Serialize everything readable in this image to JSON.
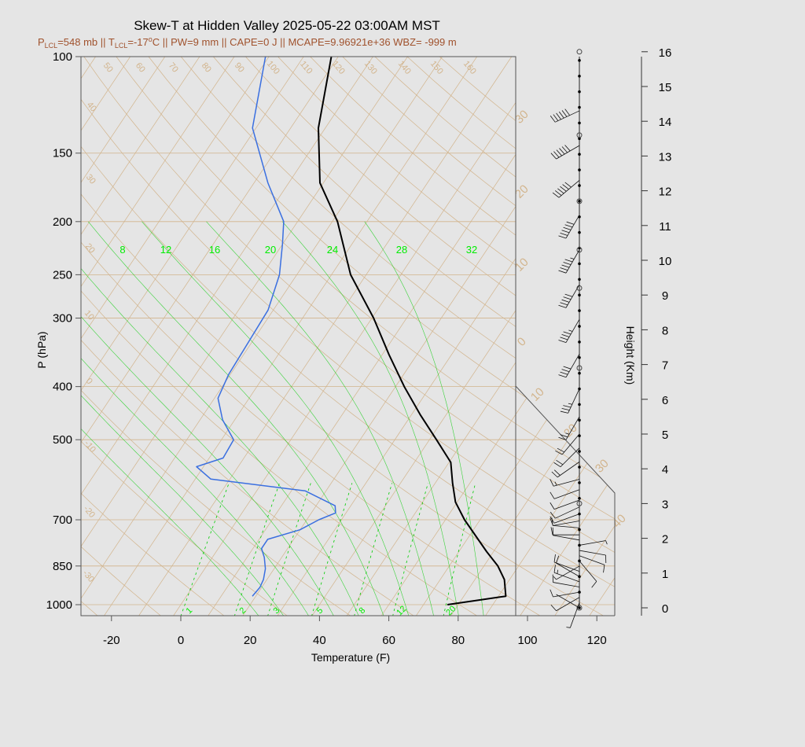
{
  "chart_data": {
    "type": "line",
    "title": "Skew-T at Hidden Valley 2025-05-22 03:00AM MST",
    "subtitle": {
      "p_lcl_sym": "P",
      "p_lcl_sub": "LCL",
      "p_lcl_val": "=548 mb || ",
      "t_lcl_sym": "T",
      "t_lcl_sub": "LCL",
      "t_lcl_val": "=-17",
      "deg": "o",
      "rest": "C || PW=9 mm || CAPE=0 J || MCAPE=9.96921e+36 WBZ= -999 m"
    },
    "xlabel": "Temperature (F)",
    "ylabel": "P (hPa)",
    "y2label": "Height (Km)",
    "xlim": [
      -28,
      125
    ],
    "ylim": [
      1050,
      100
    ],
    "xticks": [
      "-20",
      "0",
      "20",
      "40",
      "60",
      "80",
      "100",
      "120"
    ],
    "yticks": [
      "100",
      "150",
      "200",
      "250",
      "300",
      "400",
      "500",
      "700",
      "850",
      "1000"
    ],
    "heights": [
      "0",
      "1",
      "2",
      "3",
      "4",
      "5",
      "6",
      "7",
      "8",
      "9",
      "10",
      "11",
      "12",
      "13",
      "14",
      "15",
      "16"
    ],
    "isotherm_labels": [
      "50",
      "60",
      "70",
      "80",
      "90",
      "100",
      "110",
      "120",
      "130",
      "140",
      "150",
      "160"
    ],
    "isotherm_left_labels": [
      "40",
      "30",
      "20",
      "10",
      "0",
      "-10",
      "-20",
      "-30"
    ],
    "isotherm_right_labels": [
      "30",
      "20",
      "10",
      "0",
      "10",
      "20",
      "30",
      "40"
    ],
    "mixing_labels": [
      "1",
      "2",
      "3",
      "5",
      "8",
      "12",
      "20"
    ],
    "moist_labels": [
      "8",
      "12",
      "16",
      "20",
      "24",
      "28",
      "32"
    ],
    "series": [
      {
        "name": "Temperature",
        "color": "#000000",
        "points": [
          [
            1000,
            76.9
          ],
          [
            965,
            92.1
          ],
          [
            900,
            88.5
          ],
          [
            850,
            84.0
          ],
          [
            800,
            78.0
          ],
          [
            700,
            65.5
          ],
          [
            650,
            59.5
          ],
          [
            600,
            55.0
          ],
          [
            550,
            50.5
          ],
          [
            500,
            42.0
          ],
          [
            450,
            32.5
          ],
          [
            400,
            22.5
          ],
          [
            350,
            12.0
          ],
          [
            300,
            0.5
          ],
          [
            250,
            -14.5
          ],
          [
            200,
            -28.5
          ],
          [
            170,
            -41.0
          ],
          [
            135,
            -52.0
          ],
          [
            100,
            -62.0
          ]
        ]
      },
      {
        "name": "Dewpoint",
        "color": "#3a6fe0",
        "points": [
          [
            965,
            19.0
          ],
          [
            930,
            19.5
          ],
          [
            900,
            19.0
          ],
          [
            860,
            17.5
          ],
          [
            820,
            15.0
          ],
          [
            790,
            12.5
          ],
          [
            760,
            12.5
          ],
          [
            730,
            20.0
          ],
          [
            700,
            23.5
          ],
          [
            680,
            27.0
          ],
          [
            660,
            25.5
          ],
          [
            620,
            14.0
          ],
          [
            590,
            -15.5
          ],
          [
            560,
            -22.0
          ],
          [
            540,
            -16.0
          ],
          [
            500,
            -16.5
          ],
          [
            460,
            -23.5
          ],
          [
            420,
            -29.0
          ],
          [
            380,
            -30.5
          ],
          [
            330,
            -31.0
          ],
          [
            290,
            -31.5
          ],
          [
            250,
            -35.0
          ],
          [
            220,
            -40.0
          ],
          [
            200,
            -44.0
          ],
          [
            170,
            -56.0
          ],
          [
            135,
            -71.0
          ],
          [
            100,
            -81.0
          ]
        ]
      }
    ],
    "winds": [
      {
        "h": 0.0,
        "dir": 300,
        "kt": 3
      },
      {
        "h": 0.15,
        "dir": 200,
        "kt": 8
      },
      {
        "h": 0.3,
        "dir": 240,
        "kt": 10
      },
      {
        "h": 0.45,
        "dir": 260,
        "kt": 12
      },
      {
        "h": 0.6,
        "dir": 280,
        "kt": 14
      },
      {
        "h": 0.75,
        "dir": 290,
        "kt": 15
      },
      {
        "h": 0.9,
        "dir": 300,
        "kt": 12
      },
      {
        "h": 1.05,
        "dir": 290,
        "kt": 10
      },
      {
        "h": 1.2,
        "dir": 240,
        "kt": 8
      },
      {
        "h": 1.35,
        "dir": 140,
        "kt": 10
      },
      {
        "h": 1.5,
        "dir": 110,
        "kt": 12
      },
      {
        "h": 1.65,
        "dir": 100,
        "kt": 10
      },
      {
        "h": 1.8,
        "dir": 80,
        "kt": 8
      },
      {
        "h": 1.95,
        "dir": 280,
        "kt": 10
      },
      {
        "h": 2.1,
        "dir": 270,
        "kt": 12
      },
      {
        "h": 2.3,
        "dir": 275,
        "kt": 12
      },
      {
        "h": 2.5,
        "dir": 260,
        "kt": 14
      },
      {
        "h": 2.7,
        "dir": 250,
        "kt": 12
      },
      {
        "h": 2.9,
        "dir": 245,
        "kt": 10
      },
      {
        "h": 3.1,
        "dir": 250,
        "kt": 10
      },
      {
        "h": 3.4,
        "dir": 250,
        "kt": 12
      },
      {
        "h": 3.7,
        "dir": 255,
        "kt": 15
      },
      {
        "h": 4.2,
        "dir": 235,
        "kt": 20
      },
      {
        "h": 4.6,
        "dir": 225,
        "kt": 22
      },
      {
        "h": 5.0,
        "dir": 220,
        "kt": 20
      },
      {
        "h": 5.5,
        "dir": 210,
        "kt": 25
      },
      {
        "h": 6.3,
        "dir": 205,
        "kt": 35
      },
      {
        "h": 7.3,
        "dir": 210,
        "kt": 40
      },
      {
        "h": 8.3,
        "dir": 210,
        "kt": 45
      },
      {
        "h": 9.3,
        "dir": 210,
        "kt": 50
      },
      {
        "h": 10.3,
        "dir": 210,
        "kt": 55
      },
      {
        "h": 11.3,
        "dir": 210,
        "kt": 60
      },
      {
        "h": 12.3,
        "dir": 230,
        "kt": 60
      },
      {
        "h": 13.3,
        "dir": 240,
        "kt": 60
      },
      {
        "h": 14.3,
        "dir": 245,
        "kt": 60
      }
    ],
    "grid": true
  }
}
